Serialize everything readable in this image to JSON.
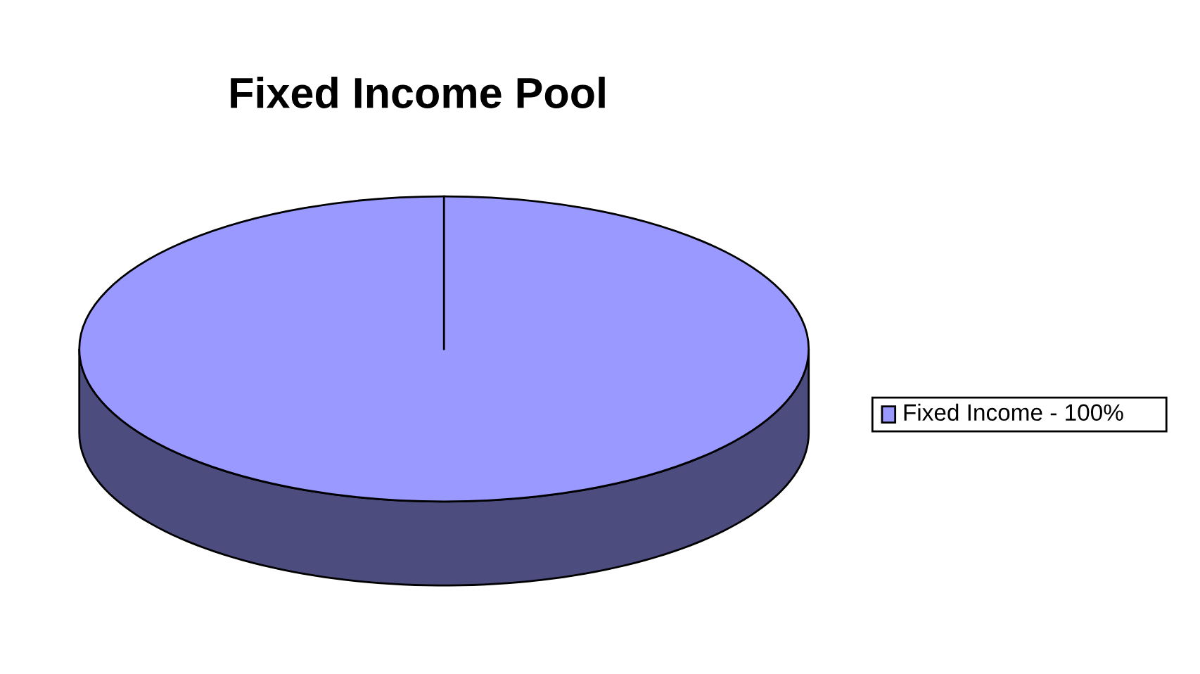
{
  "chart_data": {
    "type": "pie",
    "title": "Fixed Income Pool",
    "categories": [
      "Fixed Income - 100%"
    ],
    "values": [
      100
    ],
    "colors": [
      "#9999ff"
    ],
    "legend": "right"
  }
}
